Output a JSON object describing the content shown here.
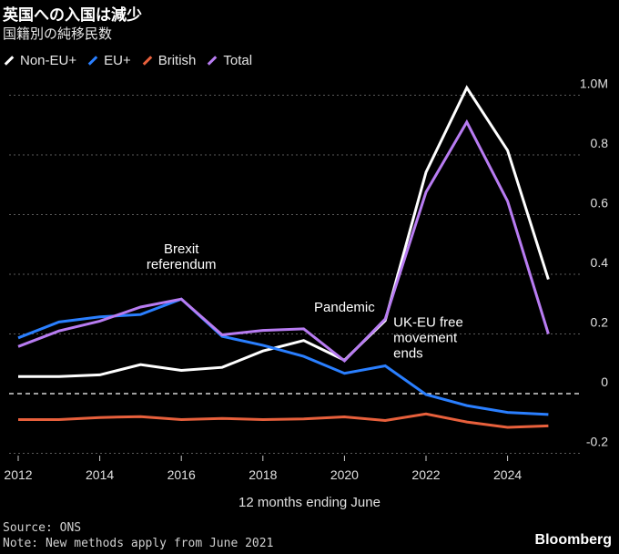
{
  "header": {
    "title": "英国への入国は減少",
    "subtitle": "国籍別の純移民数"
  },
  "legend": [
    {
      "label": "Non-EU+",
      "color": "#ffffff"
    },
    {
      "label": "EU+",
      "color": "#2a7fff"
    },
    {
      "label": "British",
      "color": "#e8603c"
    },
    {
      "label": "Total",
      "color": "#b87cf2"
    }
  ],
  "chart_data": {
    "type": "line",
    "x": [
      2012,
      2013,
      2014,
      2015,
      2016,
      2017,
      2018,
      2019,
      2020,
      2021,
      2022,
      2023,
      2024,
      2025
    ],
    "series": [
      {
        "name": "Non-EU+",
        "color": "#ffffff",
        "values": [
          0.057,
          0.057,
          0.063,
          0.097,
          0.078,
          0.088,
          0.143,
          0.178,
          0.112,
          0.245,
          0.742,
          1.025,
          0.815,
          0.383
        ]
      },
      {
        "name": "EU+",
        "color": "#2a7fff",
        "values": [
          0.187,
          0.24,
          0.257,
          0.265,
          0.317,
          0.192,
          0.162,
          0.125,
          0.068,
          0.093,
          -0.003,
          -0.04,
          -0.063,
          -0.07
        ]
      },
      {
        "name": "British",
        "color": "#e8603c",
        "values": [
          -0.087,
          -0.087,
          -0.08,
          -0.077,
          -0.087,
          -0.083,
          -0.087,
          -0.085,
          -0.078,
          -0.09,
          -0.068,
          -0.095,
          -0.113,
          -0.108
        ]
      },
      {
        "name": "Total",
        "color": "#b87cf2",
        "values": [
          0.158,
          0.21,
          0.243,
          0.29,
          0.317,
          0.197,
          0.212,
          0.217,
          0.11,
          0.25,
          0.675,
          0.91,
          0.645,
          0.2
        ]
      }
    ],
    "xlabel": "12 months ending June",
    "ylabel": "",
    "xlim": [
      2012,
      2025
    ],
    "ylim": [
      -0.2,
      1.0
    ],
    "y_ticks": [
      -0.2,
      0,
      0.2,
      0.4,
      0.6,
      0.8,
      1.0
    ],
    "y_tick_labels": [
      "-0.2",
      "0",
      "0.2",
      "0.4",
      "0.6",
      "0.8",
      "1.0M"
    ],
    "x_ticks": [
      2012,
      2014,
      2016,
      2018,
      2020,
      2022,
      2024
    ],
    "x_tick_labels": [
      "2012",
      "2014",
      "2016",
      "2018",
      "2020",
      "2022",
      "2024"
    ],
    "grid": true,
    "annotations": [
      {
        "lines": [
          "Brexit",
          "referendum"
        ],
        "x": 2016,
        "y": 0.47,
        "anchor": "middle"
      },
      {
        "lines": [
          "Pandemic"
        ],
        "x": 2020,
        "y": 0.275,
        "anchor": "middle"
      },
      {
        "lines": [
          "UK-EU free",
          "movement",
          "ends"
        ],
        "x": 2021.2,
        "y": 0.225,
        "anchor": "start"
      }
    ],
    "source": "Source: ONS",
    "note": "Note: New methods apply from June 2021"
  },
  "brand": "Bloomberg"
}
